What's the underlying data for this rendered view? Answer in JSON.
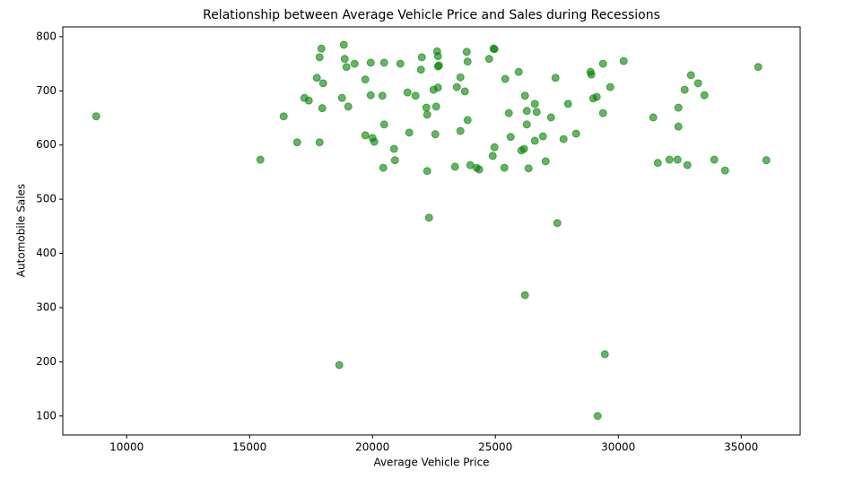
{
  "chart_data": {
    "type": "scatter",
    "title": "Relationship between Average Vehicle Price and Sales during Recessions",
    "xlabel": "Average Vehicle Price",
    "ylabel": "Automobile Sales",
    "color": "#008000",
    "alpha": 0.6,
    "xlim": [
      7400,
      37400
    ],
    "xticks": [
      10000,
      15000,
      20000,
      25000,
      30000,
      35000
    ],
    "ylim": [
      65,
      818
    ],
    "yticks": [
      100,
      200,
      300,
      400,
      500,
      600,
      700,
      800
    ],
    "x": [
      8760,
      15438,
      16387,
      16934,
      17226,
      17409,
      17737,
      17847,
      17920,
      17847,
      17956,
      17993,
      18650,
      18759,
      18832,
      18869,
      18942,
      19015,
      19270,
      19708,
      19708,
      19927,
      19927,
      20000,
      20073,
      20401,
      20474,
      20474,
      20438,
      20876,
      20912,
      21131,
      21423,
      21496,
      21752,
      21971,
      22007,
      22190,
      22226,
      22226,
      22299,
      22482,
      22555,
      22591,
      22628,
      22664,
      22664,
      22701,
      22664,
      23358,
      23431,
      23577,
      23577,
      23759,
      23832,
      23869,
      23869,
      23978,
      24234,
      24343,
      24745,
      24891,
      24927,
      24964,
      24964,
      25401,
      25365,
      25547,
      25620,
      25949,
      26058,
      26168,
      26204,
      26204,
      26277,
      26277,
      26350,
      26606,
      26679,
      26606,
      26934,
      27044,
      27263,
      27445,
      27518,
      27774,
      27956,
      28285,
      28869,
      28905,
      28978,
      29124,
      29161,
      29380,
      29380,
      29453,
      29672,
      30219,
      31423,
      31606,
      32080,
      32409,
      32445,
      32445,
      32701,
      32810,
      32956,
      33248,
      33504,
      33905,
      34343,
      35693,
      36022
    ],
    "values": [
      653,
      573,
      653,
      605,
      687,
      682,
      724,
      762,
      778,
      605,
      668,
      714,
      194,
      687,
      785,
      759,
      744,
      671,
      750,
      721,
      618,
      752,
      692,
      613,
      606,
      691,
      752,
      638,
      558,
      593,
      572,
      750,
      697,
      623,
      691,
      739,
      762,
      669,
      656,
      552,
      466,
      702,
      620,
      671,
      773,
      764,
      745,
      747,
      706,
      560,
      707,
      725,
      626,
      699,
      772,
      754,
      646,
      563,
      558,
      555,
      759,
      580,
      778,
      777,
      596,
      722,
      558,
      659,
      615,
      735,
      590,
      593,
      691,
      323,
      663,
      638,
      557,
      676,
      661,
      608,
      616,
      570,
      651,
      724,
      456,
      611,
      676,
      621,
      735,
      730,
      686,
      689,
      100,
      750,
      659,
      214,
      707,
      755,
      651,
      567,
      573,
      573,
      669,
      634,
      702,
      563,
      729,
      714,
      692,
      573,
      553,
      744,
      572
    ]
  }
}
